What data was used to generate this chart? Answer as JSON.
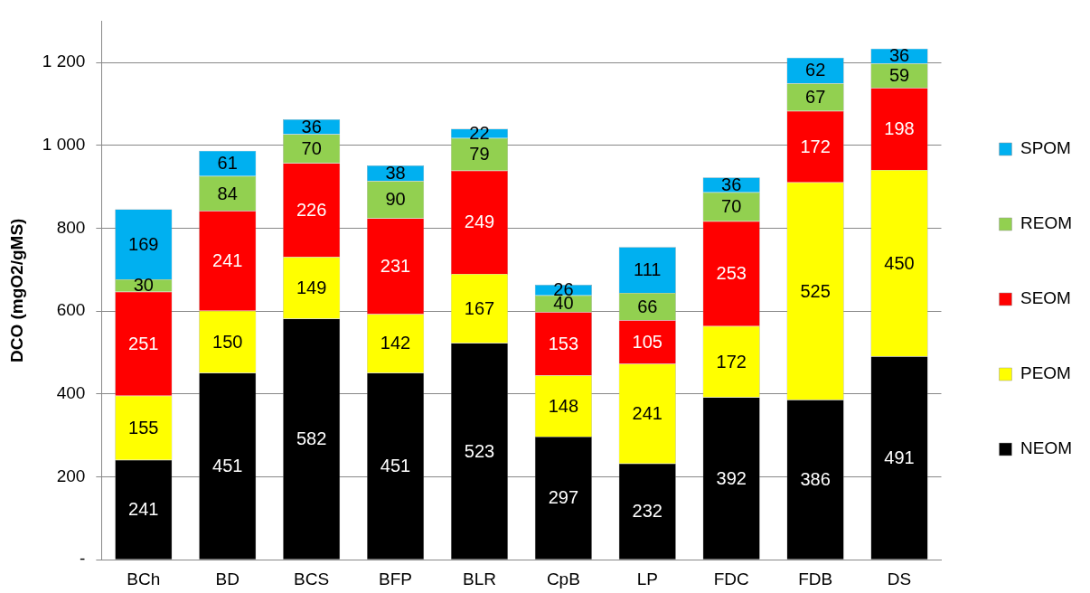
{
  "chart_data": {
    "type": "bar",
    "stacked": true,
    "ylabel": "DCO (mgO2/gMS)",
    "categories": [
      "BCh",
      "BD",
      "BCS",
      "BFP",
      "BLR",
      "CpB",
      "LP",
      "FDC",
      "FDB",
      "DS"
    ],
    "series": [
      {
        "name": "NEOM",
        "color": "#000000",
        "values": [
          241,
          451,
          582,
          451,
          523,
          297,
          232,
          392,
          386,
          491
        ]
      },
      {
        "name": "PEOM",
        "color": "#ffff00",
        "values": [
          155,
          150,
          149,
          142,
          167,
          148,
          241,
          172,
          525,
          450
        ]
      },
      {
        "name": "SEOM",
        "color": "#ff0000",
        "values": [
          251,
          241,
          226,
          231,
          249,
          153,
          105,
          253,
          172,
          198
        ]
      },
      {
        "name": "REOM",
        "color": "#92d050",
        "values": [
          30,
          84,
          70,
          90,
          79,
          40,
          66,
          70,
          67,
          59
        ]
      },
      {
        "name": "SPOM",
        "color": "#00b0f0",
        "values": [
          169,
          61,
          36,
          38,
          22,
          26,
          111,
          36,
          62,
          36
        ]
      }
    ],
    "ylim": [
      0,
      1300
    ],
    "yticks": [
      {
        "value": 0,
        "label": "-"
      },
      200,
      400,
      600,
      800,
      {
        "value": 1000,
        "label": "1 000"
      },
      {
        "value": 1200,
        "label": "1 200"
      }
    ],
    "grid": "y",
    "legend": "right",
    "data_labels": true
  }
}
